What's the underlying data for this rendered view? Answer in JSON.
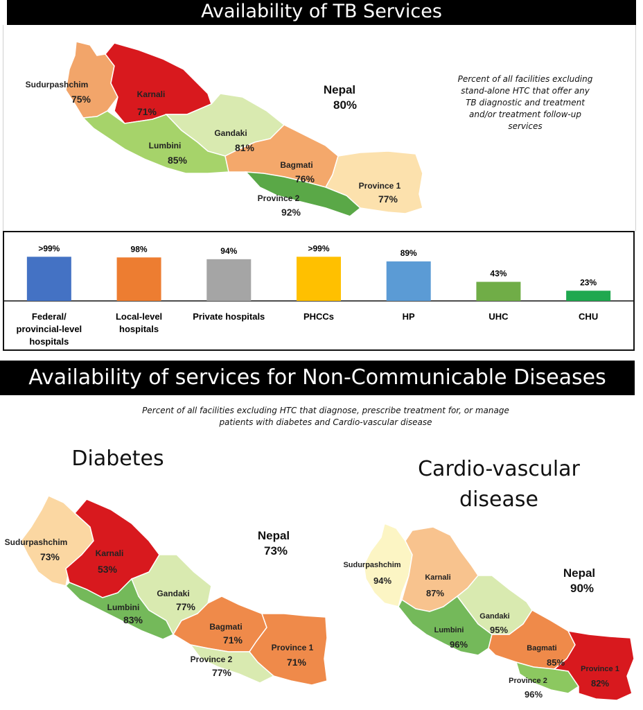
{
  "tb": {
    "title": "Availability of TB Services",
    "note": "Percent of all facilities excluding stand-alone HTC that offer any TB diagnostic and treatment and/or treatment follow-up services",
    "national": {
      "name": "Nepal",
      "value": "80%"
    },
    "provinces": [
      {
        "name": "Sudurpashchim",
        "value": "75%",
        "color": "#f2a56a"
      },
      {
        "name": "Karnali",
        "value": "71%",
        "color": "#d8191e"
      },
      {
        "name": "Lumbini",
        "value": "85%",
        "color": "#a6d36a"
      },
      {
        "name": "Gandaki",
        "value": "81%",
        "color": "#d9eab0"
      },
      {
        "name": "Bagmati",
        "value": "76%",
        "color": "#f4a86b"
      },
      {
        "name": "Province 2",
        "value": "92%",
        "color": "#5aa847"
      },
      {
        "name": "Province 1",
        "value": "77%",
        "color": "#fce1ad"
      }
    ]
  },
  "chart_data": {
    "type": "bar",
    "categories": [
      "Federal/ provincial-level hospitals",
      "Local-level hospitals",
      "Private hospitals",
      "PHCCs",
      "HP",
      "UHC",
      "CHU"
    ],
    "values": [
      99.5,
      98,
      94,
      99.5,
      89,
      43,
      23
    ],
    "value_labels": [
      ">99%",
      "98%",
      "94%",
      ">99%",
      "89%",
      "43%",
      "23%"
    ],
    "colors": [
      "#4472c4",
      "#ed7d31",
      "#a5a5a5",
      "#ffc000",
      "#5b9bd5",
      "#70ad47",
      "#1fa84f"
    ],
    "ylim": [
      0,
      100
    ]
  },
  "ncd": {
    "title": "Availability of services for Non-Communicable Diseases",
    "note_line1": "Percent of all facilities excluding HTC  that diagnose, prescribe treatment for, or manage",
    "note_line2": "patients with diabetes and Cardio-vascular disease",
    "diabetes": {
      "heading": "Diabetes",
      "national": {
        "name": "Nepal",
        "value": "73%"
      },
      "provinces": [
        {
          "name": "Sudurpashchim",
          "value": "73%",
          "color": "#fbd7a2"
        },
        {
          "name": "Karnali",
          "value": "53%",
          "color": "#d8191e"
        },
        {
          "name": "Lumbini",
          "value": "83%",
          "color": "#74b95a"
        },
        {
          "name": "Gandaki",
          "value": "77%",
          "color": "#d9eab0"
        },
        {
          "name": "Bagmati",
          "value": "71%",
          "color": "#ef8a4a"
        },
        {
          "name": "Province 2",
          "value": "77%",
          "color": "#d9eab0"
        },
        {
          "name": "Province 1",
          "value": "71%",
          "color": "#ef8a4a"
        }
      ]
    },
    "cvd": {
      "heading_line1": "Cardio-vascular",
      "heading_line2": "disease",
      "national": {
        "name": "Nepal",
        "value": "90%"
      },
      "provinces": [
        {
          "name": "Sudurpashchim",
          "value": "94%",
          "color": "#fcf5c4"
        },
        {
          "name": "Karnali",
          "value": "87%",
          "color": "#f8c38e"
        },
        {
          "name": "Lumbini",
          "value": "96%",
          "color": "#74b95a"
        },
        {
          "name": "Gandaki",
          "value": "95%",
          "color": "#d9eab0"
        },
        {
          "name": "Bagmati",
          "value": "85%",
          "color": "#ef8a4a"
        },
        {
          "name": "Province 2",
          "value": "96%",
          "color": "#8cc860"
        },
        {
          "name": "Province 1",
          "value": "82%",
          "color": "#d8191e"
        }
      ]
    }
  }
}
